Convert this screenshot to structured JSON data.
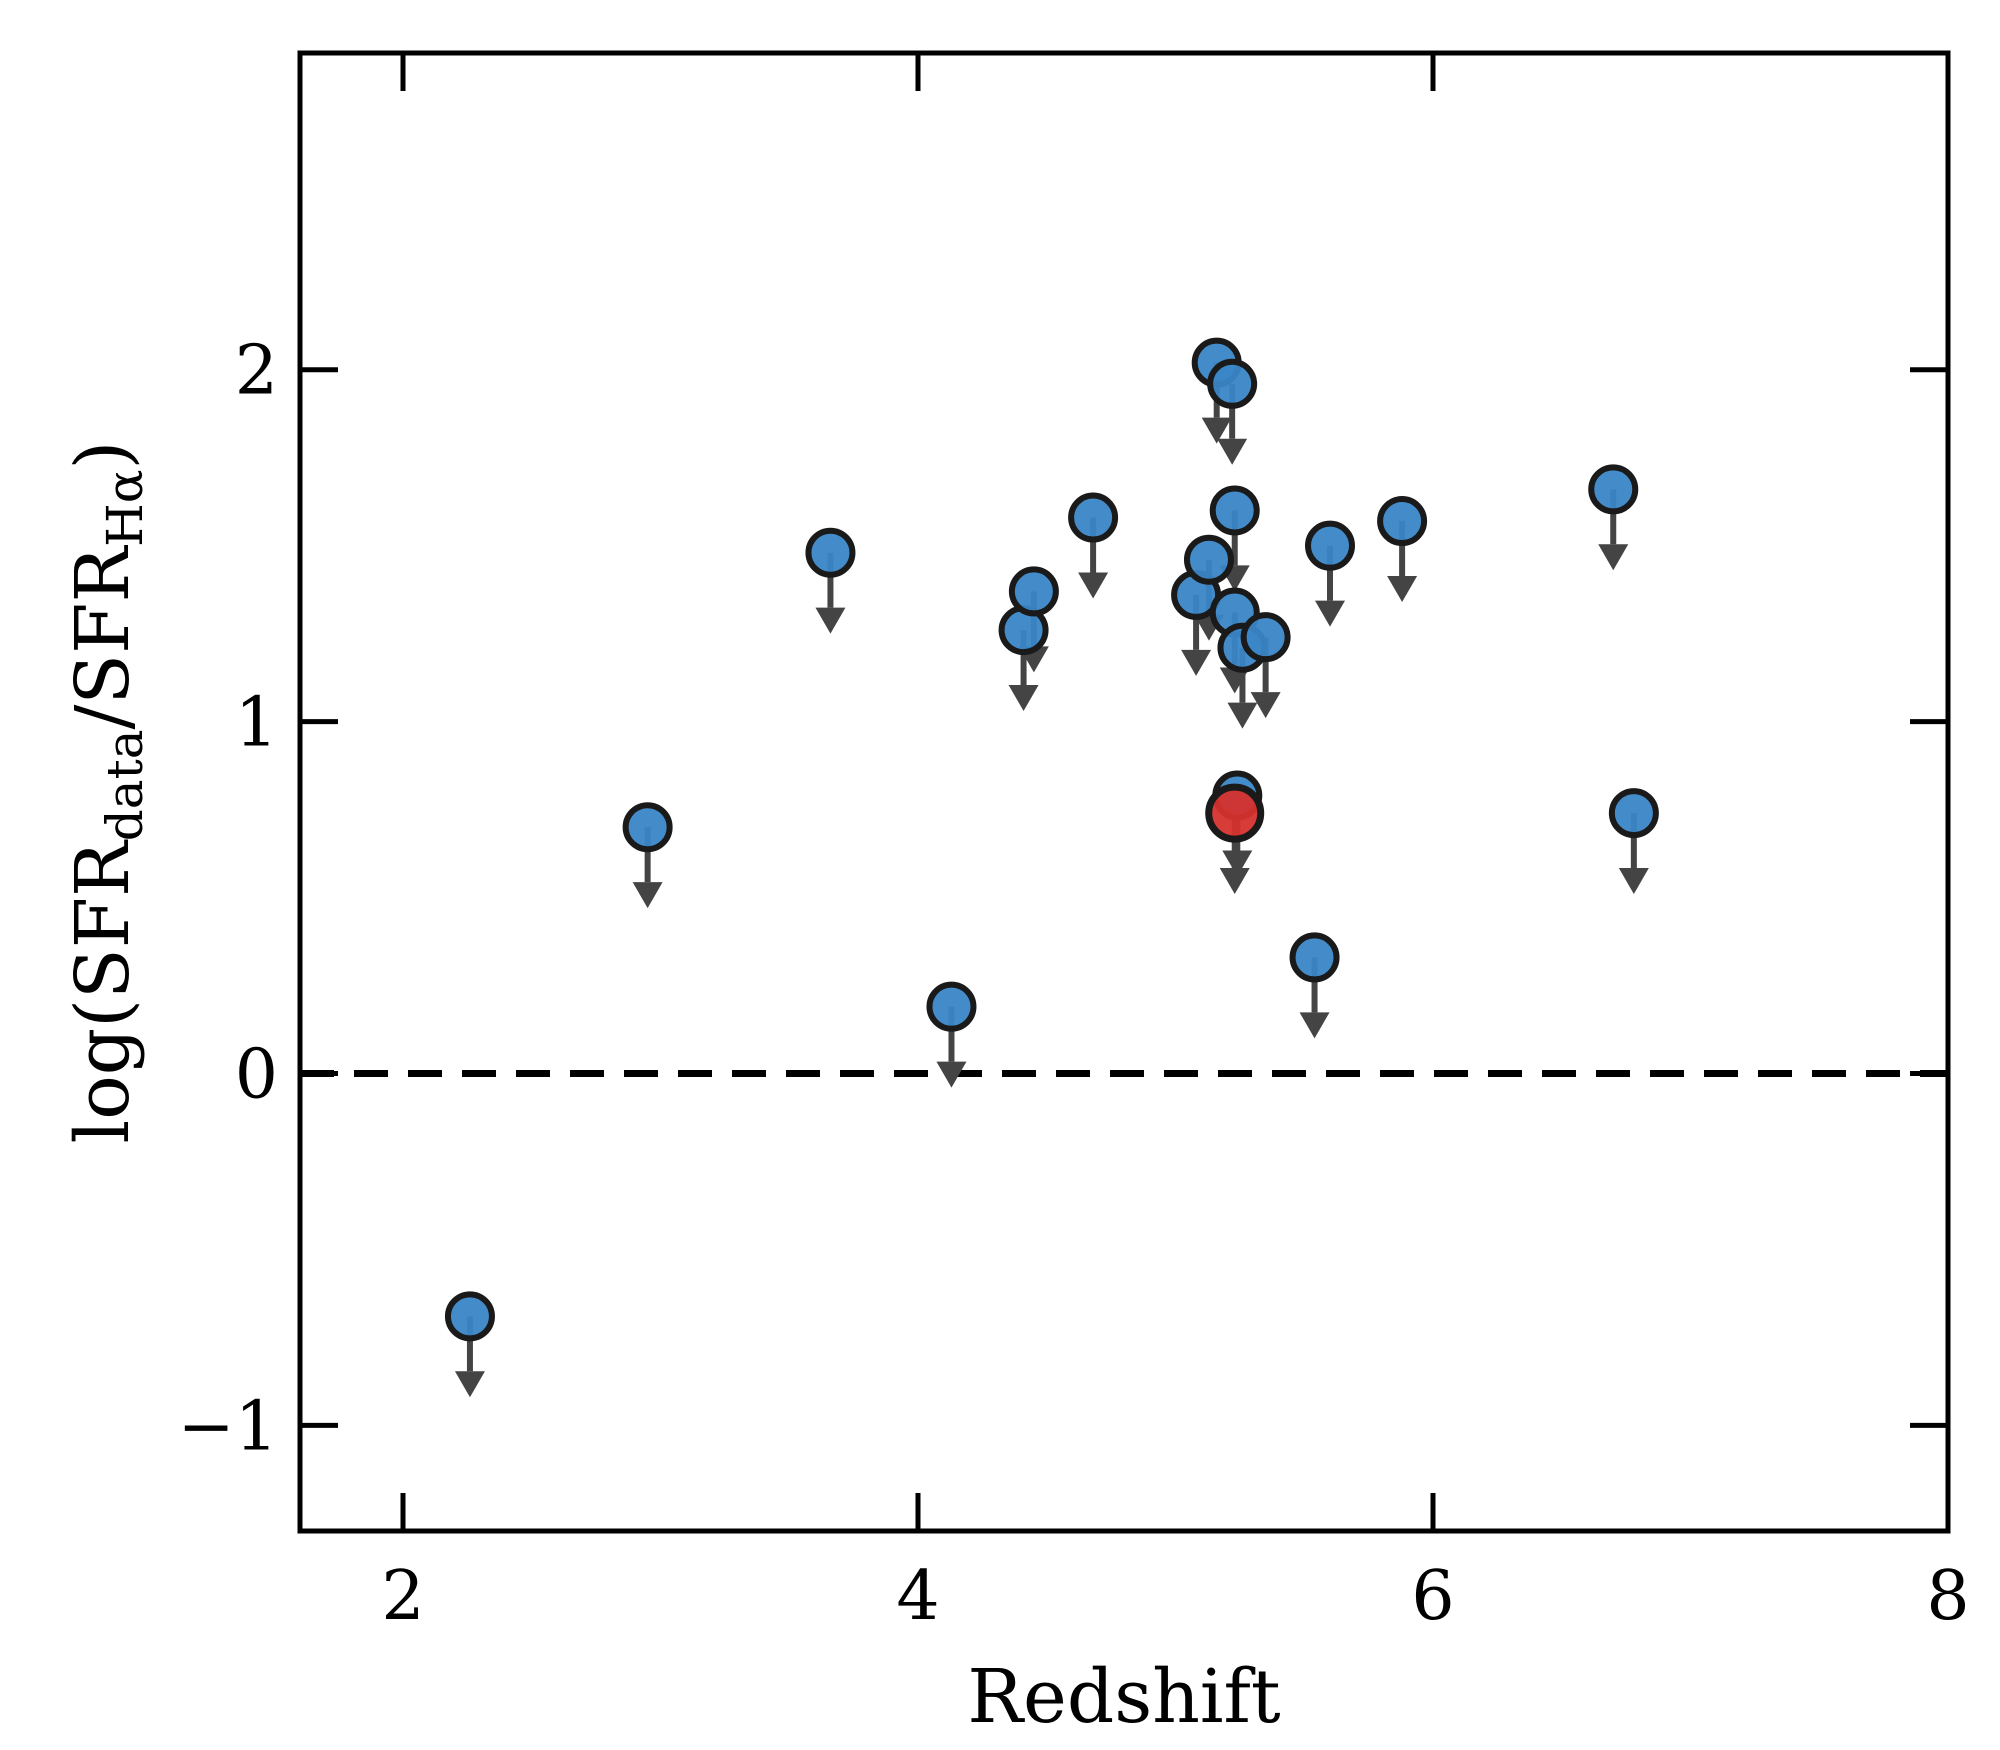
{
  "chart_data": {
    "type": "scatter",
    "xlabel": "Redshift",
    "ylabel": {
      "prefix": "log(SFR",
      "sub1": "data",
      "mid": "/SFR",
      "sub2": "Hα",
      "suffix": ")"
    },
    "xlim": [
      1.6,
      8.0
    ],
    "ylim": [
      -1.3,
      2.9
    ],
    "x_ticks": [
      2,
      4,
      6,
      8
    ],
    "x_tick_labels": [
      "2",
      "4",
      "6",
      "8"
    ],
    "y_ticks": [
      -1,
      0,
      1,
      2
    ],
    "y_tick_labels": [
      "−1",
      "0",
      "1",
      "2"
    ],
    "grid": false,
    "legend": "none",
    "reference_line": {
      "y": 0,
      "style": "dashed",
      "color": "#000000"
    },
    "upper_limits": true,
    "colors": {
      "point_fill": "#3a86c6",
      "highlight_fill": "#d6312d",
      "point_edge": "#1a1a1a",
      "arrow": "#444444",
      "axes": "#000000"
    },
    "series": [
      {
        "marker": "circle",
        "color": "#3a86c6",
        "points": [
          {
            "x": 2.26,
            "y": -0.69
          },
          {
            "x": 2.95,
            "y": 0.7
          },
          {
            "x": 3.66,
            "y": 1.48
          },
          {
            "x": 4.13,
            "y": 0.19
          },
          {
            "x": 4.41,
            "y": 1.26
          },
          {
            "x": 4.45,
            "y": 1.37
          },
          {
            "x": 4.68,
            "y": 1.58
          },
          {
            "x": 5.08,
            "y": 1.36
          },
          {
            "x": 5.13,
            "y": 1.46
          },
          {
            "x": 5.16,
            "y": 2.02
          },
          {
            "x": 5.22,
            "y": 1.96
          },
          {
            "x": 5.23,
            "y": 1.6
          },
          {
            "x": 5.23,
            "y": 1.31
          },
          {
            "x": 5.24,
            "y": 0.79
          },
          {
            "x": 5.26,
            "y": 1.21
          },
          {
            "x": 5.35,
            "y": 1.24
          },
          {
            "x": 5.54,
            "y": 0.33
          },
          {
            "x": 5.6,
            "y": 1.5
          },
          {
            "x": 5.88,
            "y": 1.57
          },
          {
            "x": 6.7,
            "y": 1.66
          },
          {
            "x": 6.78,
            "y": 0.74
          }
        ]
      },
      {
        "marker": "circle",
        "color": "#d6312d",
        "points": [
          {
            "x": 5.23,
            "y": 0.74
          }
        ]
      }
    ]
  }
}
